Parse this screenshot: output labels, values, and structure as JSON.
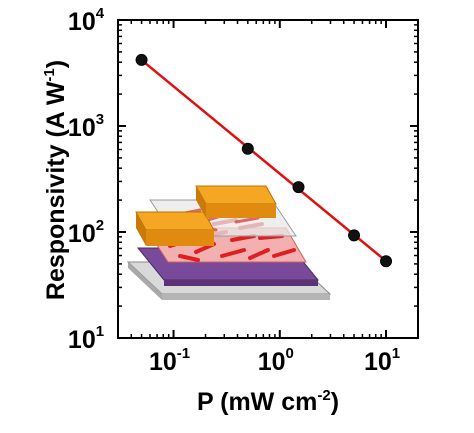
{
  "chart_data": {
    "type": "scatter",
    "title": "",
    "xlabel": {
      "main": "P (mW cm",
      "sup": "-2",
      "tail": ")"
    },
    "ylabel": {
      "main": "Responsivity (A W",
      "sup": "-1",
      "tail": ")"
    },
    "xscale": "log",
    "yscale": "log",
    "xlim": [
      0.03,
      20
    ],
    "ylim": [
      10,
      10000
    ],
    "x_ticks": [
      {
        "base": "10",
        "exp": "-1",
        "value": 0.1
      },
      {
        "base": "10",
        "exp": "0",
        "value": 1
      },
      {
        "base": "10",
        "exp": "1",
        "value": 10
      }
    ],
    "y_ticks": [
      {
        "base": "10",
        "exp": "1",
        "value": 10
      },
      {
        "base": "10",
        "exp": "2",
        "value": 100
      },
      {
        "base": "10",
        "exp": "3",
        "value": 1000
      },
      {
        "base": "10",
        "exp": "4",
        "value": 10000
      }
    ],
    "series": [
      {
        "x": [
          0.05,
          0.5,
          1.5,
          5,
          10
        ],
        "y": [
          4200,
          610,
          265,
          93,
          53
        ],
        "marker": "circle",
        "marker_color": "#111111",
        "fit_line_color": "#e01010"
      }
    ],
    "grid": false,
    "legend": "none",
    "inset_image": "device-schematic"
  }
}
